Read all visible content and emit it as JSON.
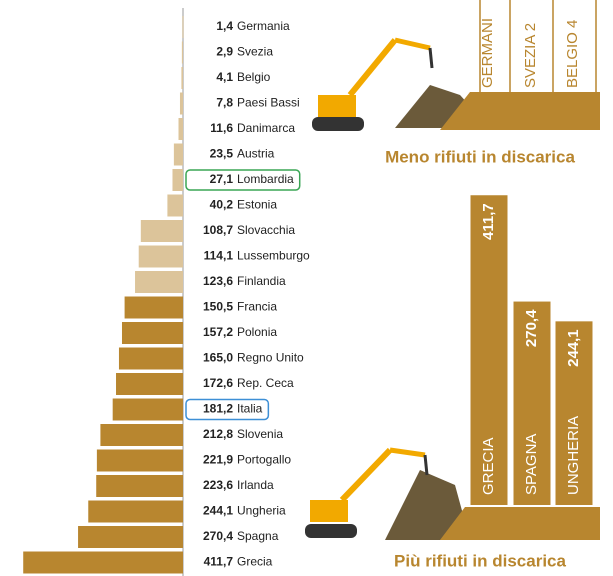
{
  "chart_data": [
    {
      "type": "bar",
      "categories": [
        "Germania",
        "Svezia",
        "Belgio",
        "Paesi Bassi",
        "Danimarca",
        "Austria",
        "Lombardia",
        "Estonia",
        "Slovacchia",
        "Lussemburgo",
        "Finlandia",
        "Francia",
        "Polonia",
        "Regno Unito",
        "Rep. Ceca",
        "Italia",
        "Slovenia",
        "Portogallo",
        "Irlanda",
        "Ungheria",
        "Spagna",
        "Grecia"
      ],
      "values": [
        1.4,
        2.9,
        4.1,
        7.8,
        11.6,
        23.5,
        27.1,
        40.2,
        108.7,
        114.1,
        123.6,
        150.5,
        157.2,
        165.0,
        172.6,
        181.2,
        212.8,
        221.9,
        223.6,
        244.1,
        270.4,
        411.7
      ],
      "value_labels": [
        "1,4",
        "2,9",
        "4,1",
        "7,8",
        "11,6",
        "23,5",
        "27,1",
        "40,2",
        "108,7",
        "114,1",
        "123,6",
        "150,5",
        "157,2",
        "165,0",
        "172,6",
        "181,2",
        "212,8",
        "221,9",
        "223,6",
        "244,1",
        "270,4",
        "411,7"
      ],
      "colors": [
        "#dcc49a",
        "#dcc49a",
        "#dcc49a",
        "#dcc49a",
        "#dcc49a",
        "#dcc49a",
        "#dcc49a",
        "#dcc49a",
        "#dcc49a",
        "#dcc49a",
        "#dcc49a",
        "#b8862f",
        "#b8862f",
        "#b8862f",
        "#b8862f",
        "#b8862f",
        "#b8862f",
        "#b8862f",
        "#b8862f",
        "#b8862f",
        "#b8862f",
        "#b8862f"
      ],
      "outlines": [
        null,
        null,
        null,
        null,
        null,
        null,
        "#3aa655",
        null,
        null,
        null,
        null,
        null,
        null,
        null,
        null,
        "#3d8fd6",
        null,
        null,
        null,
        null,
        null,
        null
      ],
      "xlim": [
        0,
        420
      ]
    },
    {
      "type": "labels",
      "title": "Meno rifiuti in discarica",
      "categories": [
        "GERMANI",
        "SVEZIA 2",
        "BELGIO 4"
      ],
      "color": "#b8862f"
    },
    {
      "type": "column",
      "title": "Più rifiuti in discarica",
      "categories": [
        "GRECIA",
        "SPAGNA",
        "UNGHERIA"
      ],
      "values": [
        411.7,
        270.4,
        244.1
      ],
      "value_labels": [
        "411,7",
        "270,4",
        "244,1"
      ],
      "color": "#b8862f",
      "ylim": [
        0,
        420
      ]
    }
  ]
}
